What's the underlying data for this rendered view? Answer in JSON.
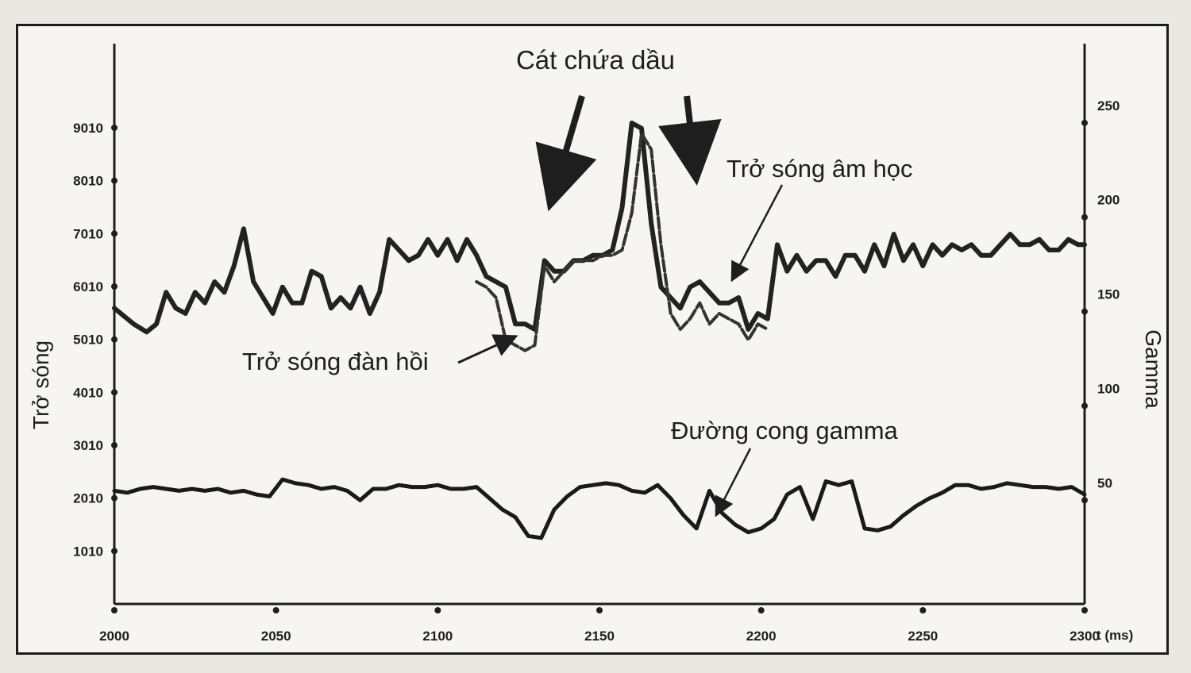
{
  "chart_data": {
    "type": "line",
    "title": "Cát chứa dầu",
    "xlabel": "t (ms)",
    "ylabel_left": "Trở sóng",
    "ylabel_right": "Gamma",
    "xlim": [
      2000,
      2300
    ],
    "ylim_left": [
      10,
      10600
    ],
    "ylim_right": [
      -5,
      292
    ],
    "x_ticks": [
      "2000",
      "2050",
      "2100",
      "2150",
      "2200",
      "2250",
      "2300"
    ],
    "y_ticks_left": [
      "1010",
      "2010",
      "3010",
      "4010",
      "5010",
      "6010",
      "7010",
      "8010",
      "9010"
    ],
    "y_ticks_right": [
      "50",
      "100",
      "150",
      "200",
      "250"
    ],
    "grid": false,
    "annotations": [
      {
        "text": "Cát chứa dầu",
        "target_x": 2163
      },
      {
        "text": "Trở sóng âm học",
        "target_x": 2192
      },
      {
        "text": "Trở sóng đàn hồi",
        "target_x": 2127
      },
      {
        "text": "Đường cong gamma",
        "target_x": 2188
      }
    ],
    "series": [
      {
        "name": "Trở sóng âm học",
        "color": "#222222",
        "x": [
          2000,
          2003,
          2006,
          2010,
          2013,
          2016,
          2019,
          2022,
          2025,
          2028,
          2031,
          2034,
          2037,
          2040,
          2043,
          2046,
          2049,
          2052,
          2055,
          2058,
          2061,
          2064,
          2067,
          2070,
          2073,
          2076,
          2079,
          2082,
          2085,
          2088,
          2091,
          2094,
          2097,
          2100,
          2103,
          2106,
          2109,
          2112,
          2115,
          2118,
          2121,
          2124,
          2127,
          2130,
          2133,
          2136,
          2139,
          2142,
          2145,
          2148,
          2151,
          2154,
          2157,
          2160,
          2163,
          2166,
          2169,
          2172,
          2175,
          2178,
          2181,
          2184,
          2187,
          2190,
          2193,
          2196,
          2199,
          2202,
          2205,
          2208,
          2211,
          2214,
          2217,
          2220,
          2223,
          2226,
          2229,
          2232,
          2235,
          2238,
          2241,
          2244,
          2247,
          2250,
          2253,
          2256,
          2259,
          2262,
          2265,
          2268,
          2271,
          2274,
          2277,
          2280,
          2283,
          2286,
          2289,
          2292,
          2295,
          2298,
          2300
        ],
        "y": [
          5600,
          5450,
          5300,
          5150,
          5300,
          5900,
          5600,
          5500,
          5900,
          5700,
          6100,
          5900,
          6400,
          7100,
          6100,
          5800,
          5500,
          6000,
          5700,
          5700,
          6300,
          6200,
          5600,
          5800,
          5600,
          6000,
          5500,
          5900,
          6900,
          6700,
          6500,
          6600,
          6900,
          6600,
          6900,
          6500,
          6900,
          6600,
          6200,
          6100,
          6000,
          5300,
          5300,
          5200,
          6500,
          6300,
          6300,
          6500,
          6500,
          6600,
          6600,
          6700,
          7500,
          9100,
          9000,
          7200,
          6000,
          5800,
          5600,
          6000,
          6100,
          5900,
          5700,
          5700,
          5800,
          5200,
          5500,
          5400,
          6800,
          6300,
          6600,
          6300,
          6500,
          6500,
          6200,
          6600,
          6600,
          6300,
          6800,
          6400,
          7000,
          6500,
          6800,
          6400,
          6800,
          6600,
          6800,
          6700,
          6800,
          6600,
          6600,
          6800,
          7000,
          6800,
          6800,
          6900,
          6700,
          6700,
          6900,
          6800,
          6800
        ]
      },
      {
        "name": "Trở sóng đàn hồi",
        "color": "#333333",
        "x": [
          2112,
          2115,
          2118,
          2121,
          2124,
          2127,
          2130,
          2133,
          2136,
          2139,
          2142,
          2145,
          2148,
          2151,
          2154,
          2157,
          2160,
          2163,
          2166,
          2169,
          2172,
          2175,
          2178,
          2181,
          2184,
          2187,
          2190,
          2193,
          2196,
          2199,
          2202
        ],
        "y": [
          6100,
          6000,
          5800,
          5000,
          4900,
          4800,
          4900,
          6400,
          6100,
          6300,
          6500,
          6500,
          6500,
          6600,
          6600,
          6700,
          7400,
          8900,
          8600,
          6800,
          5500,
          5200,
          5400,
          5700,
          5300,
          5500,
          5400,
          5300,
          5000,
          5300,
          5200
        ]
      },
      {
        "name": "Đường cong gamma",
        "color": "#1a1a1a",
        "x": [
          2000,
          2004,
          2008,
          2012,
          2016,
          2020,
          2024,
          2028,
          2032,
          2036,
          2040,
          2044,
          2048,
          2052,
          2056,
          2060,
          2064,
          2068,
          2072,
          2076,
          2080,
          2084,
          2088,
          2092,
          2096,
          2100,
          2104,
          2108,
          2112,
          2116,
          2120,
          2124,
          2128,
          2132,
          2136,
          2140,
          2144,
          2148,
          2152,
          2156,
          2160,
          2164,
          2168,
          2172,
          2176,
          2180,
          2184,
          2188,
          2192,
          2196,
          2200,
          2204,
          2208,
          2212,
          2216,
          2220,
          2224,
          2228,
          2232,
          2236,
          2240,
          2244,
          2248,
          2252,
          2256,
          2260,
          2264,
          2268,
          2272,
          2276,
          2280,
          2284,
          2288,
          2292,
          2296,
          2300
        ],
        "y": [
          55,
          54,
          56,
          57,
          56,
          55,
          56,
          55,
          56,
          54,
          55,
          53,
          52,
          61,
          59,
          58,
          56,
          57,
          55,
          50,
          56,
          56,
          58,
          57,
          57,
          58,
          56,
          56,
          57,
          51,
          45,
          41,
          31,
          30,
          45,
          52,
          57,
          58,
          59,
          58,
          55,
          54,
          58,
          51,
          42,
          35,
          55,
          43,
          37,
          33,
          35,
          40,
          53,
          57,
          40,
          60,
          58,
          60,
          35,
          34,
          36,
          42,
          47,
          51,
          54,
          58,
          58,
          56,
          57,
          59,
          58,
          57,
          57,
          56,
          57,
          53
        ]
      }
    ]
  }
}
